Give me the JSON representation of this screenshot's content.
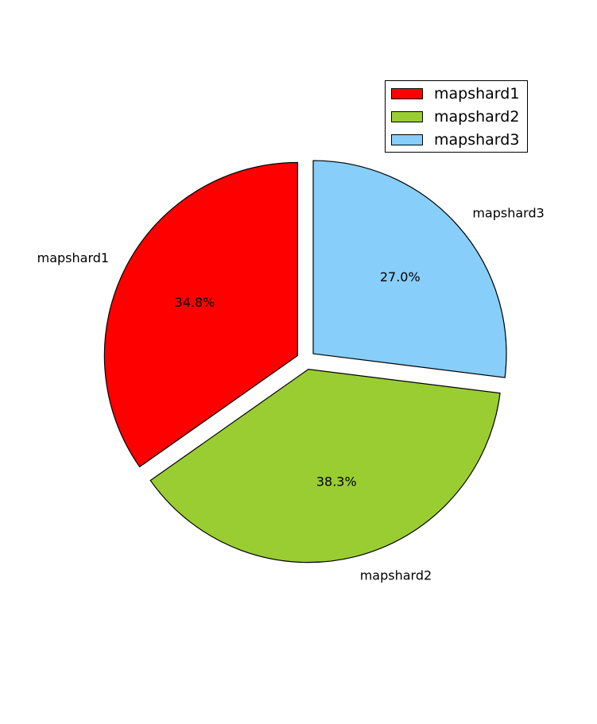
{
  "chart_data": {
    "type": "pie",
    "title": "",
    "slices": [
      {
        "label": "mapshard1",
        "value": 34.8,
        "pct_label": "34.8%",
        "color": "#ff0000"
      },
      {
        "label": "mapshard2",
        "value": 38.3,
        "pct_label": "38.3%",
        "color": "#9acd32"
      },
      {
        "label": "mapshard3",
        "value": 27.0,
        "pct_label": "27.0%",
        "color": "#87cefa"
      }
    ],
    "start_angle_deg": 90,
    "direction": "counterclockwise",
    "exploded": true,
    "legend": {
      "placement": "top-right",
      "entries": [
        "mapshard1",
        "mapshard2",
        "mapshard3"
      ]
    }
  }
}
